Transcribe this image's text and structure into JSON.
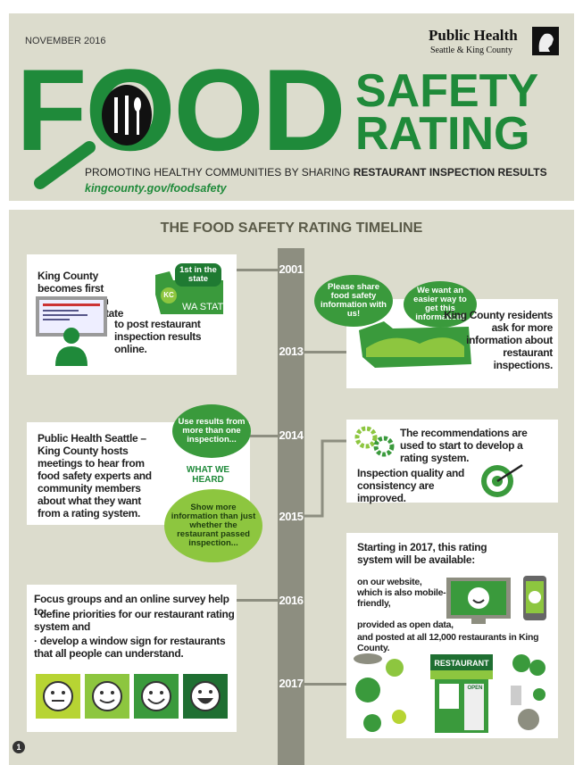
{
  "header": {
    "date": "NOVEMBER 2016",
    "org_name": "Public Health",
    "org_sub": "Seattle & King County",
    "title_word": "FOOD",
    "title_line1": "SAFETY",
    "title_line2": "RATING",
    "tagline": "PROMOTING HEALTHY COMMUNITIES BY SHARING",
    "tagline_bold": "RESTAURANT INSPECTION RESULTS",
    "url": "kingcounty.gov/foodsafety"
  },
  "timeline": {
    "title": "THE FOOD SAFETY RATING TIMELINE",
    "years": [
      "2001",
      "2013",
      "2014",
      "2015",
      "2016",
      "2017"
    ],
    "events": [
      {
        "text_1": "King County becomes first municipality in Washington State",
        "text_2": "to post restaurant inspection results online.",
        "badge": "1st in the state",
        "map_tag": "KC",
        "map_label": "WA STATE"
      },
      {
        "bubble_1": "Please share food safety information with us!",
        "bubble_2": "We want an easier way to get this information!",
        "text": "King County residents ask for more information about restaurant inspections."
      },
      {
        "text": "Public Health Seattle – King County hosts meetings to hear from food safety experts and community members about what they want from a rating system.",
        "bubble_1": "Use results from more than one inspection...",
        "label": "WHAT WE HEARD",
        "bubble_2": "Show more information than just whether the restaurant passed inspection..."
      },
      {
        "text_1": "The recommendations are used to start to develop a rating system.",
        "text_2": "Inspection quality and consistency are improved."
      },
      {
        "intro": "Focus groups and an online survey help to:",
        "items": [
          "· define priorities for our restaurant rating system and",
          "· develop a window sign for restaurants that all people can understand."
        ]
      },
      {
        "intro": "Starting in 2017, this rating system will be available:",
        "channels": [
          "on our website, which is also mobile-friendly,",
          "provided as open data,",
          "and posted at all 12,000 restaurants in King County."
        ],
        "sign": "RESTAURANT",
        "open": "OPEN"
      }
    ]
  },
  "page_number": "1"
}
